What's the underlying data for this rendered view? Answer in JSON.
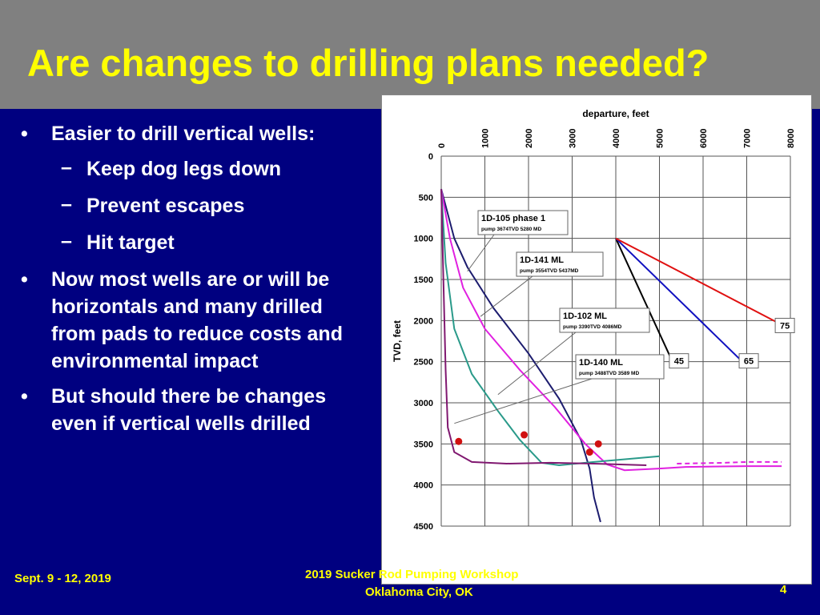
{
  "slide": {
    "title": "Are changes to drilling plans needed?",
    "bullets": [
      "Easier to drill vertical wells:",
      "Now most wells are or will be horizontals and many drilled from pads to reduce costs and environmental impact",
      "But should there be changes even if vertical wells drilled"
    ],
    "subbullets": [
      "Keep dog legs down",
      "Prevent escapes",
      "Hit target"
    ],
    "bullet_symbol": "•",
    "dash_symbol": "–"
  },
  "footer": {
    "date": "Sept. 9 - 12, 2019",
    "conference": "2019 Sucker Rod Pumping Workshop",
    "location": "Oklahoma City, OK",
    "page": "4"
  },
  "colors": {
    "background": "#000080",
    "header": "#808080",
    "title": "#ffff00",
    "footer_text": "#ffff00",
    "body_text": "#ffffff"
  },
  "chart_data": {
    "type": "line",
    "x_label": "departure, feet",
    "y_label": "TVD, feet",
    "x_ticks": [
      0,
      1000,
      2000,
      3000,
      4000,
      5000,
      6000,
      7000,
      8000
    ],
    "y_ticks": [
      0,
      500,
      1000,
      1500,
      2000,
      2500,
      3000,
      3500,
      4000,
      4500
    ],
    "xlim": [
      0,
      8000
    ],
    "ylim": [
      0,
      4500
    ],
    "y_inverted": true,
    "grid": true,
    "series": [
      {
        "name": "1D-105 phase 1",
        "color": "#1c1c6e",
        "points": [
          [
            0,
            400
          ],
          [
            300,
            1000
          ],
          [
            600,
            1350
          ],
          [
            1200,
            1850
          ],
          [
            2000,
            2400
          ],
          [
            2700,
            2950
          ],
          [
            3200,
            3450
          ],
          [
            3400,
            3800
          ],
          [
            3500,
            4150
          ],
          [
            3650,
            4450
          ]
        ]
      },
      {
        "name": "1D-141 ML",
        "color": "#e020e0",
        "points": [
          [
            0,
            400
          ],
          [
            200,
            1000
          ],
          [
            500,
            1600
          ],
          [
            1000,
            2100
          ],
          [
            1800,
            2600
          ],
          [
            2600,
            3050
          ],
          [
            3300,
            3500
          ],
          [
            3800,
            3750
          ],
          [
            4200,
            3820
          ],
          [
            5000,
            3800
          ],
          [
            5600,
            3780
          ],
          [
            7000,
            3770
          ],
          [
            7800,
            3770
          ]
        ]
      },
      {
        "name": "1D-141 ML (dashed extension)",
        "color": "#e020e0",
        "dashed": true,
        "points": [
          [
            5400,
            3740
          ],
          [
            6500,
            3730
          ],
          [
            7000,
            3720
          ],
          [
            7800,
            3720
          ]
        ]
      },
      {
        "name": "1D-102 ML",
        "color": "#2a9a8a",
        "points": [
          [
            0,
            400
          ],
          [
            100,
            1300
          ],
          [
            300,
            2100
          ],
          [
            700,
            2650
          ],
          [
            1300,
            3100
          ],
          [
            1800,
            3450
          ],
          [
            2300,
            3730
          ],
          [
            2700,
            3760
          ],
          [
            3500,
            3720
          ],
          [
            5000,
            3650
          ]
        ]
      },
      {
        "name": "1D-140 ML",
        "color": "#801870",
        "points": [
          [
            0,
            400
          ],
          [
            50,
            1500
          ],
          [
            100,
            2600
          ],
          [
            150,
            3300
          ],
          [
            300,
            3600
          ],
          [
            700,
            3720
          ],
          [
            1500,
            3740
          ],
          [
            2500,
            3730
          ],
          [
            3500,
            3740
          ],
          [
            4700,
            3760
          ]
        ]
      },
      {
        "name": "45",
        "color": "#000000",
        "points": [
          [
            4000,
            1000
          ],
          [
            5300,
            2500
          ]
        ]
      },
      {
        "name": "65",
        "color": "#1010c0",
        "points": [
          [
            4000,
            1000
          ],
          [
            6900,
            2500
          ]
        ]
      },
      {
        "name": "75",
        "color": "#e01010",
        "points": [
          [
            4000,
            1000
          ],
          [
            7800,
            2050
          ]
        ]
      }
    ],
    "markers": [
      {
        "x": 400,
        "y": 3470,
        "color": "#d01010"
      },
      {
        "x": 1900,
        "y": 3390,
        "color": "#d01010"
      },
      {
        "x": 3600,
        "y": 3500,
        "color": "#d01010"
      },
      {
        "x": 3400,
        "y": 3600,
        "color": "#d01010"
      }
    ],
    "callouts": [
      {
        "title": "1D-105 phase 1",
        "detail": "pump 3674TVD 5280 MD"
      },
      {
        "title": "1D-141 ML",
        "detail": "pump 3554TVD 5437MD"
      },
      {
        "title": "1D-102 ML",
        "detail": "pump 3390TVD 4086MD"
      },
      {
        "title": "1D-140 ML",
        "detail": "pump 3488TVD 3589 MD"
      }
    ],
    "angle_labels": [
      "45",
      "65",
      "75"
    ]
  }
}
